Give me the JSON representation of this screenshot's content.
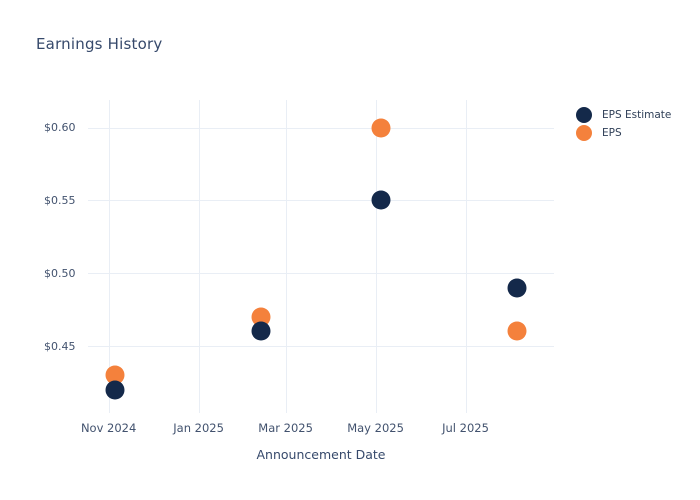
{
  "chart_data": {
    "type": "scatter",
    "title": "Earnings History",
    "xlabel": "Announcement Date",
    "ylabel": "",
    "grid": true,
    "legend_position": "right",
    "x_domain_dates": [
      "2024-10-18",
      "2025-08-30"
    ],
    "ylim": [
      0.404,
      0.619
    ],
    "x_ticks": [
      {
        "date": "2024-11-01",
        "label": "Nov 2024"
      },
      {
        "date": "2025-01-01",
        "label": "Jan 2025"
      },
      {
        "date": "2025-03-01",
        "label": "Mar 2025"
      },
      {
        "date": "2025-05-01",
        "label": "May 2025"
      },
      {
        "date": "2025-07-01",
        "label": "Jul 2025"
      }
    ],
    "y_ticks": [
      {
        "value": 0.45,
        "label": "$0.45"
      },
      {
        "value": 0.5,
        "label": "$0.50"
      },
      {
        "value": 0.55,
        "label": "$0.55"
      },
      {
        "value": 0.6,
        "label": "$0.60"
      }
    ],
    "x": [
      "2024-11-05",
      "2025-02-12",
      "2025-05-05",
      "2025-08-05"
    ],
    "series": [
      {
        "name": "EPS",
        "color": "#f4813c",
        "values": [
          0.43,
          0.47,
          0.6,
          0.46
        ]
      },
      {
        "name": "EPS Estimate",
        "color": "#14294a",
        "values": [
          0.42,
          0.46,
          0.55,
          0.49
        ]
      }
    ],
    "legend_order": [
      "EPS Estimate",
      "EPS"
    ]
  },
  "legend": {
    "items": [
      {
        "label": "EPS Estimate",
        "color": "#14294a"
      },
      {
        "label": "EPS",
        "color": "#f4813c"
      }
    ]
  },
  "colors": {
    "background": "#ffffff",
    "gridline": "#e9eef5",
    "title_text": "#36496b",
    "tick_text": "#42526e",
    "legend_text": "#2f3f57"
  }
}
